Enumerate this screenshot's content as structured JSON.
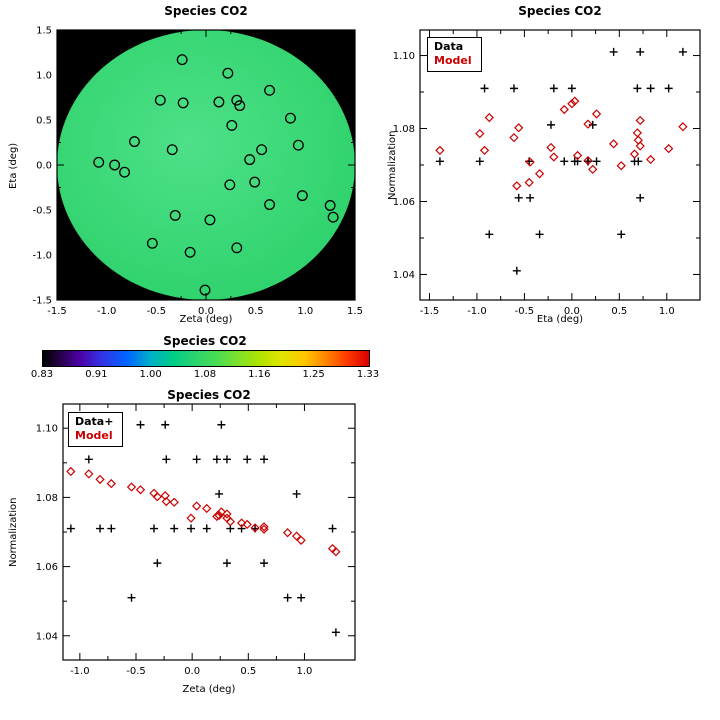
{
  "figure": {
    "background": "#ffffff"
  },
  "colors": {
    "axis": "#000000",
    "data_marker": "#000000",
    "model_marker": "#cc0000",
    "map_background": "#000000",
    "map_disk_center": "#4ee089",
    "map_disk_edge": "#2bd168"
  },
  "chart_data": [
    {
      "id": "map",
      "type": "scatter",
      "title": "Species CO2",
      "xlabel": "Zeta (deg)",
      "ylabel": "Eta (deg)",
      "xlim": [
        -1.5,
        1.5
      ],
      "ylim": [
        -1.5,
        1.5
      ],
      "xticks": [
        -1.5,
        -1.0,
        -0.5,
        0.0,
        0.5,
        1.0,
        1.5
      ],
      "xtick_labels": [
        "-1.5",
        "-1.0",
        "-0.5",
        "0.0",
        "0.5",
        "1.0",
        "1.5"
      ],
      "yticks": [
        -1.5,
        -1.0,
        -0.5,
        0.0,
        0.5,
        1.0,
        1.5
      ],
      "ytick_labels": [
        "-1.5",
        "-1.0",
        "-0.5",
        "0.0",
        "0.5",
        "1.0",
        "1.5"
      ],
      "disk": {
        "radius": 1.5,
        "background": "#000000",
        "center_color": "#4ee089",
        "edge_color": "#2bd168"
      },
      "series": [
        {
          "name": "sources",
          "marker": "circle",
          "color": "#000000",
          "x_field": "zeta",
          "y_field": "eta"
        }
      ]
    },
    {
      "id": "norm-vs-eta",
      "type": "scatter",
      "title": "Species CO2",
      "xlabel": "Eta (deg)",
      "ylabel": "Normalization",
      "xlim": [
        -1.6,
        1.35
      ],
      "ylim": [
        1.033,
        1.107
      ],
      "xticks": [
        -1.5,
        -1.0,
        -0.5,
        0.0,
        0.5,
        1.0
      ],
      "xtick_labels": [
        "-1.5",
        "-1.0",
        "-0.5",
        "0.0",
        "0.5",
        "1.0"
      ],
      "yticks": [
        1.04,
        1.06,
        1.08,
        1.1
      ],
      "ytick_labels": [
        "1.04",
        "1.06",
        "1.08",
        "1.10"
      ],
      "legend": [
        {
          "label": "Data",
          "color": "#000000"
        },
        {
          "label": "Model",
          "color": "#cc0000"
        }
      ],
      "series": [
        {
          "name": "Data",
          "marker": "plus",
          "color": "#000000",
          "x_field": "eta",
          "y_field": "data"
        },
        {
          "name": "Model",
          "marker": "diamond",
          "color": "#cc0000",
          "x_field": "eta",
          "y_field": "model"
        }
      ]
    },
    {
      "id": "colorbar",
      "type": "colorbar",
      "title": "Species CO2",
      "range": [
        0.83,
        1.33
      ],
      "tick_labels": [
        "0.83",
        "0.91",
        "1.00",
        "1.08",
        "1.16",
        "1.25",
        "1.33"
      ],
      "stops": [
        [
          "#000000",
          0
        ],
        [
          "#250045",
          5
        ],
        [
          "#4b00a0",
          11
        ],
        [
          "#3333e6",
          18
        ],
        [
          "#0066ff",
          26
        ],
        [
          "#00b0c8",
          33
        ],
        [
          "#00cd87",
          40
        ],
        [
          "#2ed46b",
          47
        ],
        [
          "#47db55",
          53
        ],
        [
          "#7fe02a",
          60
        ],
        [
          "#b4e400",
          67
        ],
        [
          "#e0e400",
          73
        ],
        [
          "#ffc800",
          80
        ],
        [
          "#ff8200",
          87
        ],
        [
          "#ff3c00",
          93
        ],
        [
          "#d80000",
          100
        ]
      ]
    },
    {
      "id": "norm-vs-zeta",
      "type": "scatter",
      "title": "Species CO2",
      "xlabel": "Zeta (deg)",
      "ylabel": "Normalization",
      "xlim": [
        -1.15,
        1.45
      ],
      "ylim": [
        1.033,
        1.107
      ],
      "xticks": [
        -1.0,
        -0.5,
        0.0,
        0.5,
        1.0
      ],
      "xtick_labels": [
        "-1.0",
        "-0.5",
        "0.0",
        "0.5",
        "1.0"
      ],
      "yticks": [
        1.04,
        1.06,
        1.08,
        1.1
      ],
      "ytick_labels": [
        "1.04",
        "1.06",
        "1.08",
        "1.10"
      ],
      "legend": [
        {
          "label": "Data+",
          "color": "#000000"
        },
        {
          "label": "Model",
          "color": "#cc0000"
        }
      ],
      "series": [
        {
          "name": "Data",
          "marker": "plus",
          "color": "#000000",
          "x_field": "zeta",
          "y_field": "data"
        },
        {
          "name": "Model",
          "marker": "diamond",
          "color": "#cc0000",
          "x_field": "zeta",
          "y_field": "model"
        }
      ]
    }
  ],
  "sources": [
    {
      "zeta": -0.24,
      "eta": 1.17,
      "data": 1.101,
      "model": 1.0805
    },
    {
      "zeta": 0.22,
      "eta": 1.02,
      "data": 1.091,
      "model": 1.0745
    },
    {
      "zeta": -0.46,
      "eta": 0.72,
      "data": 1.101,
      "model": 1.0822
    },
    {
      "zeta": -0.23,
      "eta": 0.69,
      "data": 1.091,
      "model": 1.0788
    },
    {
      "zeta": 0.13,
      "eta": 0.7,
      "data": 1.071,
      "model": 1.0768
    },
    {
      "zeta": 0.31,
      "eta": 0.72,
      "data": 1.061,
      "model": 1.0752
    },
    {
      "zeta": 0.34,
      "eta": 0.66,
      "data": 1.071,
      "model": 1.073
    },
    {
      "zeta": 0.64,
      "eta": 0.83,
      "data": 1.091,
      "model": 1.0715
    },
    {
      "zeta": 0.85,
      "eta": 0.52,
      "data": 1.051,
      "model": 1.0698
    },
    {
      "zeta": 0.26,
      "eta": 0.44,
      "data": 1.101,
      "model": 1.0758
    },
    {
      "zeta": -0.72,
      "eta": 0.26,
      "data": 1.071,
      "model": 1.084
    },
    {
      "zeta": -0.34,
      "eta": 0.17,
      "data": 1.071,
      "model": 1.0812
    },
    {
      "zeta": 0.93,
      "eta": 0.22,
      "data": 1.081,
      "model": 1.0688
    },
    {
      "zeta": 0.44,
      "eta": 0.06,
      "data": 1.071,
      "model": 1.0726
    },
    {
      "zeta": -0.92,
      "eta": 0.0,
      "data": 1.091,
      "model": 1.0868
    },
    {
      "zeta": -0.82,
      "eta": -0.08,
      "data": 1.071,
      "model": 1.0852
    },
    {
      "zeta": 0.24,
      "eta": -0.22,
      "data": 1.081,
      "model": 1.0748
    },
    {
      "zeta": 0.49,
      "eta": -0.19,
      "data": 1.091,
      "model": 1.0722
    },
    {
      "zeta": 0.97,
      "eta": -0.34,
      "data": 1.051,
      "model": 1.0676
    },
    {
      "zeta": 1.25,
      "eta": -0.45,
      "data": 1.071,
      "model": 1.0652
    },
    {
      "zeta": 1.28,
      "eta": -0.58,
      "data": 1.041,
      "model": 1.0643
    },
    {
      "zeta": 0.64,
      "eta": -0.44,
      "data": 1.061,
      "model": 1.0708
    },
    {
      "zeta": -0.31,
      "eta": -0.56,
      "data": 1.061,
      "model": 1.0802
    },
    {
      "zeta": 0.04,
      "eta": -0.61,
      "data": 1.091,
      "model": 1.0775
    },
    {
      "zeta": -0.54,
      "eta": -0.87,
      "data": 1.051,
      "model": 1.083
    },
    {
      "zeta": -0.16,
      "eta": -0.97,
      "data": 1.071,
      "model": 1.0786
    },
    {
      "zeta": 0.31,
      "eta": -0.92,
      "data": 1.091,
      "model": 1.074
    },
    {
      "zeta": -0.01,
      "eta": -1.39,
      "data": 1.071,
      "model": 1.074
    },
    {
      "zeta": -1.08,
      "eta": 0.03,
      "data": 1.071,
      "model": 1.0875
    },
    {
      "zeta": 0.56,
      "eta": 0.17,
      "data": 1.071,
      "model": 1.0712
    }
  ]
}
